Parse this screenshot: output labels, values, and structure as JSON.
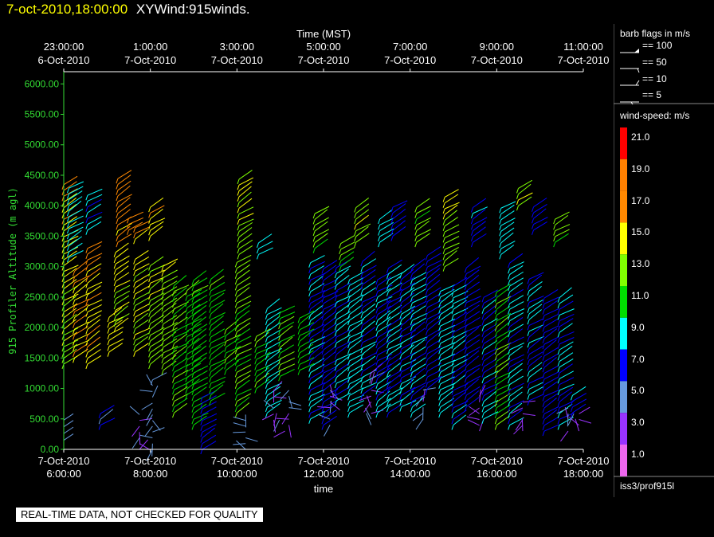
{
  "header": {
    "datetime": "7-oct-2010,18:00:00",
    "product": "XYWind:915winds."
  },
  "banner": "REAL-TIME DATA, NOT CHECKED FOR QUALITY",
  "sidebar": {
    "barb_title": "barb flags in m/s",
    "barbs": [
      "== 100",
      "== 50",
      "== 10",
      "== 5"
    ],
    "speed_title": "wind-speed: m/s",
    "speed_labels": [
      "21.0",
      "19.0",
      "17.0",
      "15.0",
      "13.0",
      "11.0",
      "9.0",
      "7.0",
      "5.0",
      "3.0",
      "1.0"
    ],
    "speed_colors": [
      "#ff0000",
      "#ff8000",
      "#ff8800",
      "#ffff00",
      "#80ff00",
      "#00dd00",
      "#00ffff",
      "#0000ff",
      "#6699dd",
      "#9933ff",
      "#ee66ee"
    ],
    "source": "iss3/prof915l"
  },
  "chart_data": {
    "type": "scatter",
    "subtype": "wind-barbs",
    "title": "",
    "ylabel": "915 Profiler Altitude (m agl)",
    "xlabel_bottom": "time",
    "xlabel_top": "Time (MST)",
    "ylim": [
      0,
      6200
    ],
    "y_ticks": [
      "0.00",
      "500.00",
      "1000.00",
      "1500.00",
      "2000.00",
      "2500.00",
      "3000.00",
      "3500.00",
      "4000.00",
      "4500.00",
      "5000.00",
      "5500.00",
      "6000.00"
    ],
    "bottom_ticks": [
      [
        "7-Oct-2010",
        "6:00:00"
      ],
      [
        "7-Oct-2010",
        "8:00:00"
      ],
      [
        "7-Oct-2010",
        "10:00:00"
      ],
      [
        "7-Oct-2010",
        "12:00:00"
      ],
      [
        "7-Oct-2010",
        "14:00:00"
      ],
      [
        "7-Oct-2010",
        "16:00:00"
      ],
      [
        "7-Oct-2010",
        "18:00:00"
      ]
    ],
    "top_ticks": [
      [
        "23:00:00",
        "6-Oct-2010"
      ],
      [
        "1:00:00",
        "7-Oct-2010"
      ],
      [
        "3:00:00",
        "7-Oct-2010"
      ],
      [
        "5:00:00",
        "7-Oct-2010"
      ],
      [
        "7:00:00",
        "7-Oct-2010"
      ],
      [
        "9:00:00",
        "7-Oct-2010"
      ],
      [
        "11:00:00",
        "7-Oct-2010"
      ]
    ],
    "grid": false,
    "profiles": [
      {
        "t": 6.0,
        "z0": 1400,
        "z1": 4400,
        "spd": 14,
        "low": [
          150,
          500
        ]
      },
      {
        "t": 6.12,
        "z0": 3150,
        "z1": 4300,
        "spd": 9
      },
      {
        "t": 6.25,
        "z0": 1500,
        "z1": 3000,
        "spd": 16
      },
      {
        "t": 6.55,
        "z0": 1400,
        "z1": 3300,
        "spd": 16
      },
      {
        "t": 6.55,
        "z0": 3600,
        "z1": 4200,
        "spd": 8
      },
      {
        "t": 6.85,
        "z0": 400,
        "z1": 650,
        "spd": 6
      },
      {
        "t": 7.05,
        "z0": 1600,
        "z1": 2200,
        "spd": 15
      },
      {
        "t": 7.2,
        "z0": 2000,
        "z1": 3300,
        "spd": 14
      },
      {
        "t": 7.25,
        "z0": 3400,
        "z1": 4500,
        "spd": 15
      },
      {
        "t": 7.5,
        "z0": 3600,
        "z1": 3800,
        "spd": 15
      },
      {
        "t": 7.65,
        "z0": 1600,
        "z1": 3200,
        "spd": 14
      },
      {
        "t": 7.65,
        "z0": 3450,
        "z1": 3700,
        "spd": 15
      },
      {
        "t": 7.75,
        "z0": 0,
        "z1": 600,
        "spd": 4
      },
      {
        "t": 8.0,
        "z0": 1400,
        "z1": 3100,
        "spd": 13
      },
      {
        "t": 8.0,
        "z0": 3500,
        "z1": 4000,
        "spd": 14
      },
      {
        "t": 8.05,
        "z0": 0,
        "z1": 1200,
        "spd": 5
      },
      {
        "t": 8.3,
        "z0": 1300,
        "z1": 3100,
        "spd": 13
      },
      {
        "t": 8.55,
        "z0": 600,
        "z1": 2700,
        "spd": 12
      },
      {
        "t": 8.85,
        "z0": 900,
        "z1": 2700,
        "spd": 11
      },
      {
        "t": 9.0,
        "z0": 400,
        "z1": 2800,
        "spd": 11
      },
      {
        "t": 9.2,
        "z0": 0,
        "z1": 900,
        "spd": 7
      },
      {
        "t": 9.4,
        "z0": 800,
        "z1": 2800,
        "spd": 11
      },
      {
        "t": 9.75,
        "z0": 1300,
        "z1": 2000,
        "spd": 12
      },
      {
        "t": 10.0,
        "z0": 600,
        "z1": 3100,
        "spd": 12
      },
      {
        "t": 10.05,
        "z0": 3200,
        "z1": 4500,
        "spd": 12
      },
      {
        "t": 10.2,
        "z0": 0,
        "z1": 650,
        "spd": 5
      },
      {
        "t": 10.45,
        "z0": 1000,
        "z1": 1900,
        "spd": 12
      },
      {
        "t": 10.5,
        "z0": 3200,
        "z1": 3400,
        "spd": 9
      },
      {
        "t": 10.7,
        "z0": 600,
        "z1": 2400,
        "spd": 9
      },
      {
        "t": 10.85,
        "z0": 200,
        "z1": 1000,
        "spd": 4
      },
      {
        "t": 11.0,
        "z0": 1200,
        "z1": 2300,
        "spd": 12
      },
      {
        "t": 11.2,
        "z0": 400,
        "z1": 1000,
        "spd": 4
      },
      {
        "t": 11.45,
        "z0": 1300,
        "z1": 2200,
        "spd": 11
      },
      {
        "t": 11.7,
        "z0": 500,
        "z1": 3100,
        "spd": 8
      },
      {
        "t": 11.8,
        "z0": 3300,
        "z1": 3900,
        "spd": 11
      },
      {
        "t": 12.0,
        "z0": 400,
        "z1": 3000,
        "spd": 7
      },
      {
        "t": 12.15,
        "z0": 400,
        "z1": 1100,
        "spd": 4
      },
      {
        "t": 12.3,
        "z0": 800,
        "z1": 3000,
        "spd": 8
      },
      {
        "t": 12.4,
        "z0": 3000,
        "z1": 3400,
        "spd": 11
      },
      {
        "t": 12.6,
        "z0": 600,
        "z1": 2800,
        "spd": 9
      },
      {
        "t": 12.75,
        "z0": 3400,
        "z1": 4000,
        "spd": 12
      },
      {
        "t": 12.9,
        "z0": 900,
        "z1": 3100,
        "spd": 8
      },
      {
        "t": 13.1,
        "z0": 400,
        "z1": 1300,
        "spd": 4
      },
      {
        "t": 13.25,
        "z0": 600,
        "z1": 2800,
        "spd": 8
      },
      {
        "t": 13.3,
        "z0": 3400,
        "z1": 3800,
        "spd": 9
      },
      {
        "t": 13.5,
        "z0": 600,
        "z1": 3000,
        "spd": 8
      },
      {
        "t": 13.6,
        "z0": 3500,
        "z1": 4000,
        "spd": 7
      },
      {
        "t": 13.8,
        "z0": 700,
        "z1": 2900,
        "spd": 8
      },
      {
        "t": 14.05,
        "z0": 600,
        "z1": 3000,
        "spd": 8
      },
      {
        "t": 14.15,
        "z0": 3400,
        "z1": 4000,
        "spd": 11
      },
      {
        "t": 14.3,
        "z0": 500,
        "z1": 1000,
        "spd": 4
      },
      {
        "t": 14.4,
        "z0": 1000,
        "z1": 3200,
        "spd": 7
      },
      {
        "t": 14.7,
        "z0": 600,
        "z1": 2600,
        "spd": 9
      },
      {
        "t": 14.8,
        "z0": 3000,
        "z1": 4200,
        "spd": 12
      },
      {
        "t": 15.0,
        "z0": 400,
        "z1": 2700,
        "spd": 8
      },
      {
        "t": 15.3,
        "z0": 700,
        "z1": 3000,
        "spd": 7
      },
      {
        "t": 15.45,
        "z0": 3400,
        "z1": 4000,
        "spd": 8
      },
      {
        "t": 15.6,
        "z0": 300,
        "z1": 900,
        "spd": 3
      },
      {
        "t": 15.7,
        "z0": 500,
        "z1": 2500,
        "spd": 8
      },
      {
        "t": 16.0,
        "z0": 400,
        "z1": 2600,
        "spd": 12
      },
      {
        "t": 16.1,
        "z0": 3200,
        "z1": 4000,
        "spd": 9
      },
      {
        "t": 16.3,
        "z0": 400,
        "z1": 3100,
        "spd": 8
      },
      {
        "t": 16.5,
        "z0": 4000,
        "z1": 4300,
        "spd": 11
      },
      {
        "t": 16.6,
        "z0": 300,
        "z1": 800,
        "spd": 3
      },
      {
        "t": 16.75,
        "z0": 800,
        "z1": 2800,
        "spd": 8
      },
      {
        "t": 16.85,
        "z0": 3600,
        "z1": 4000,
        "spd": 7
      },
      {
        "t": 17.1,
        "z0": 300,
        "z1": 2500,
        "spd": 7
      },
      {
        "t": 17.35,
        "z0": 3400,
        "z1": 3800,
        "spd": 11
      },
      {
        "t": 17.45,
        "z0": 400,
        "z1": 2500,
        "spd": 8
      },
      {
        "t": 17.65,
        "z0": 300,
        "z1": 700,
        "spd": 4
      },
      {
        "t": 17.75,
        "z0": 600,
        "z1": 900,
        "spd": 8
      },
      {
        "t": 17.9,
        "z0": 300,
        "z1": 600,
        "spd": 3
      }
    ]
  }
}
